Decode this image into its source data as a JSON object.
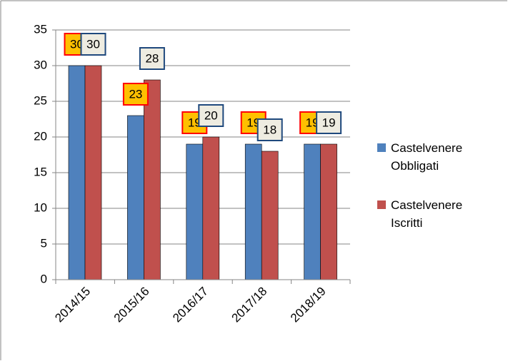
{
  "chart_data": {
    "type": "bar",
    "categories": [
      "2014/15",
      "2015/16",
      "2016/17",
      "2017/18",
      "2018/19"
    ],
    "series": [
      {
        "name": "Castelvenere Obbligati",
        "color": "#4f81bd",
        "values": [
          30,
          23,
          19,
          19,
          19
        ]
      },
      {
        "name": "Castelvenere Iscritti",
        "color": "#c0504d",
        "values": [
          30,
          28,
          20,
          18,
          19
        ]
      }
    ],
    "ylim": [
      0,
      35
    ],
    "yticks": [
      0,
      5,
      10,
      15,
      20,
      25,
      30,
      35
    ],
    "grid": true,
    "legend": "right"
  }
}
